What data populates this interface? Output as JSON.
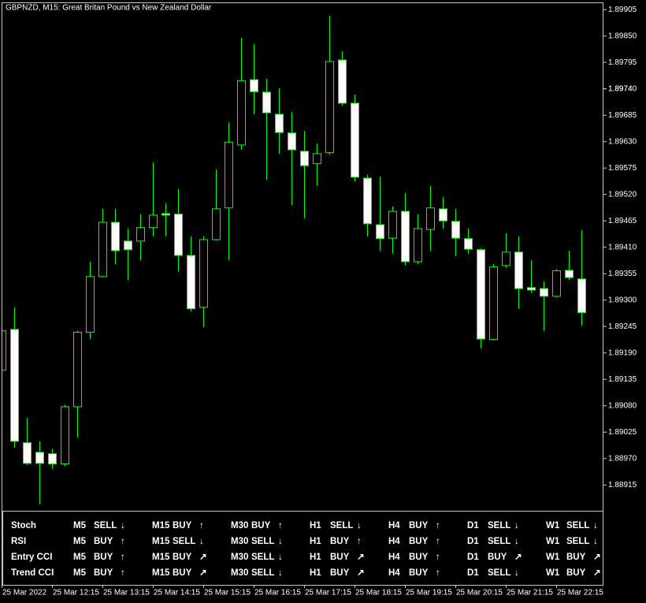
{
  "chart_data": {
    "type": "candlestick",
    "title": "GBPNZD, M15:  Great Britan Pound vs New Zealand Dollar",
    "categories": [
      "25 Mar 2022",
      null,
      null,
      null,
      "25 Mar 12:15",
      null,
      null,
      null,
      "25 Mar 13:15",
      null,
      null,
      null,
      "25 Mar 14:15",
      null,
      null,
      null,
      "25 Mar 15:15",
      null,
      null,
      null,
      "25 Mar 16:15",
      null,
      null,
      null,
      "25 Mar 17:15",
      null,
      null,
      null,
      "25 Mar 18:15",
      null,
      null,
      null,
      "25 Mar 19:15",
      null,
      null,
      null,
      "25 Mar 20:15",
      null,
      null,
      null,
      "25 Mar 21:15",
      null,
      null,
      null,
      "25 Mar 22:15",
      null,
      null
    ],
    "open": [
      1.89154,
      1.89239,
      1.89003,
      1.88983,
      1.8898,
      1.88959,
      1.89078,
      1.89233,
      1.89349,
      1.89462,
      1.89423,
      1.89423,
      1.89451,
      1.8948,
      1.89479,
      1.89393,
      1.89285,
      1.89426,
      1.89492,
      1.89623,
      1.89759,
      1.89733,
      1.89687,
      1.89648,
      1.8961,
      1.89584,
      1.89607,
      1.898,
      1.8971,
      1.89554,
      1.89457,
      1.89429,
      1.89485,
      1.8938,
      1.89447,
      1.8949,
      1.89464,
      1.89428,
      1.89405,
      1.89218,
      1.89372,
      1.894,
      1.89326,
      1.89324,
      1.89308,
      1.89362,
      1.89344
    ],
    "high": [
      1.89282,
      1.89285,
      1.89055,
      1.89006,
      1.8899,
      1.89082,
      1.89236,
      1.8938,
      1.8949,
      1.8949,
      1.89449,
      1.89479,
      1.89587,
      1.89502,
      1.89531,
      1.89433,
      1.89433,
      1.89572,
      1.8967,
      1.89846,
      1.89833,
      1.89761,
      1.89741,
      1.89692,
      1.89652,
      1.89626,
      1.89892,
      1.89818,
      1.89728,
      1.89561,
      1.89557,
      1.89495,
      1.89523,
      1.89479,
      1.89538,
      1.89515,
      1.8949,
      1.89449,
      1.89408,
      1.89375,
      1.89439,
      1.89433,
      1.89383,
      1.89339,
      1.89364,
      1.89403,
      1.89446
    ],
    "low": [
      1.89146,
      1.88993,
      1.88957,
      1.88875,
      1.88949,
      1.88954,
      1.89014,
      1.89219,
      1.89347,
      1.89375,
      1.89342,
      1.89383,
      1.89433,
      1.89433,
      1.89359,
      1.89277,
      1.89244,
      1.89424,
      1.89383,
      1.89613,
      1.89687,
      1.89551,
      1.89605,
      1.89498,
      1.8947,
      1.89538,
      1.89603,
      1.89705,
      1.89547,
      1.89433,
      1.89403,
      1.89397,
      1.89372,
      1.89375,
      1.89403,
      1.89449,
      1.89392,
      1.89397,
      1.892,
      1.89216,
      1.89367,
      1.89282,
      1.89315,
      1.89236,
      1.89305,
      1.89342,
      1.89247
    ],
    "close": [
      1.89236,
      1.89006,
      1.8896,
      1.8896,
      1.88959,
      1.89078,
      1.89233,
      1.89349,
      1.89462,
      1.89403,
      1.89405,
      1.89451,
      1.89477,
      1.89477,
      1.89393,
      1.89282,
      1.89426,
      1.8949,
      1.89629,
      1.89757,
      1.89734,
      1.8969,
      1.89649,
      1.89613,
      1.8958,
      1.89605,
      1.89797,
      1.8971,
      1.89556,
      1.89459,
      1.89428,
      1.89485,
      1.8938,
      1.89449,
      1.89492,
      1.89465,
      1.89429,
      1.89406,
      1.89219,
      1.89369,
      1.894,
      1.89324,
      1.89321,
      1.89308,
      1.89361,
      1.89347,
      1.89274
    ],
    "ylim": [
      1.88707,
      1.8992
    ],
    "yticks": [
      1.89905,
      {
        "value": 1.8985,
        "label": "1.89850"
      },
      1.89795,
      1.8974,
      {
        "value": 1.8974,
        "label": "1.89740"
      },
      1.89685,
      {
        "value": 1.8963,
        "label": "1.89630"
      },
      1.89575,
      {
        "value": 1.8952,
        "label": "1.89520"
      },
      1.89465,
      {
        "value": 1.8941,
        "label": "1.89410"
      },
      1.89355,
      {
        "value": 1.893,
        "label": "1.89300"
      },
      1.89245,
      {
        "value": 1.8919,
        "label": "1.89190"
      },
      1.89135,
      {
        "value": 1.8908,
        "label": "1.89080"
      },
      1.89025,
      {
        "value": 1.8897,
        "label": "1.88970"
      },
      1.88915
    ],
    "bull_color": "#000000",
    "bear_color": "#ffffff",
    "line_color": "#00ff00"
  },
  "indicator_panel": {
    "rows": [
      {
        "label": "Stoch",
        "cells": [
          {
            "tf": "M5",
            "signal": "SELL",
            "arrow": "↓",
            "color": "#ff2020"
          },
          {
            "tf": "M15",
            "signal": "BUY",
            "arrow": "↑",
            "color": "#00e000"
          },
          {
            "tf": "M30",
            "signal": "BUY",
            "arrow": "↑",
            "color": "#00e000"
          },
          {
            "tf": "H1",
            "signal": "SELL",
            "arrow": "↓",
            "color": "#ff2020"
          },
          {
            "tf": "H4",
            "signal": "BUY",
            "arrow": "↑",
            "color": "#00e000"
          },
          {
            "tf": "D1",
            "signal": "SELL",
            "arrow": "↓",
            "color": "#ff2020"
          },
          {
            "tf": "W1",
            "signal": "SELL",
            "arrow": "↓",
            "color": "#ff2020"
          }
        ]
      },
      {
        "label": "RSI",
        "cells": [
          {
            "tf": "M5",
            "signal": "BUY",
            "arrow": "↑",
            "color": "#00e000"
          },
          {
            "tf": "M15",
            "signal": "SELL",
            "arrow": "↓",
            "color": "#ff2020"
          },
          {
            "tf": "M30",
            "signal": "SELL",
            "arrow": "↓",
            "color": "#ff2020"
          },
          {
            "tf": "H1",
            "signal": "BUY",
            "arrow": "↑",
            "color": "#00e000"
          },
          {
            "tf": "H4",
            "signal": "BUY",
            "arrow": "↑",
            "color": "#00e000"
          },
          {
            "tf": "D1",
            "signal": "SELL",
            "arrow": "↓",
            "color": "#ff2020"
          },
          {
            "tf": "W1",
            "signal": "SELL",
            "arrow": "↓",
            "color": "#ff2020"
          }
        ]
      },
      {
        "label": "Entry CCI",
        "cells": [
          {
            "tf": "M5",
            "signal": "BUY",
            "arrow": "↑",
            "color": "#00e000"
          },
          {
            "tf": "M15",
            "signal": "BUY",
            "arrow": "↗",
            "color": "#00e000"
          },
          {
            "tf": "M30",
            "signal": "SELL",
            "arrow": "↓",
            "color": "#ff2020"
          },
          {
            "tf": "H1",
            "signal": "BUY",
            "arrow": "↗",
            "color": "#00e000"
          },
          {
            "tf": "H4",
            "signal": "BUY",
            "arrow": "↑",
            "color": "#00e000"
          },
          {
            "tf": "D1",
            "signal": "BUY",
            "arrow": "↗",
            "color": "#00e000"
          },
          {
            "tf": "W1",
            "signal": "BUY",
            "arrow": "↗",
            "color": "#00e000"
          }
        ]
      },
      {
        "label": "Trend CCI",
        "cells": [
          {
            "tf": "M5",
            "signal": "BUY",
            "arrow": "↑",
            "color": "#00e000"
          },
          {
            "tf": "M15",
            "signal": "BUY",
            "arrow": "↗",
            "color": "#00e000"
          },
          {
            "tf": "M30",
            "signal": "SELL",
            "arrow": "↓",
            "color": "#ff2020"
          },
          {
            "tf": "H1",
            "signal": "BUY",
            "arrow": "↗",
            "color": "#00e000"
          },
          {
            "tf": "H4",
            "signal": "BUY",
            "arrow": "↑",
            "color": "#00e000"
          },
          {
            "tf": "D1",
            "signal": "SELL",
            "arrow": "↓",
            "color": "#ff2020"
          },
          {
            "tf": "W1",
            "signal": "BUY",
            "arrow": "↗",
            "color": "#00e000"
          }
        ]
      }
    ]
  }
}
